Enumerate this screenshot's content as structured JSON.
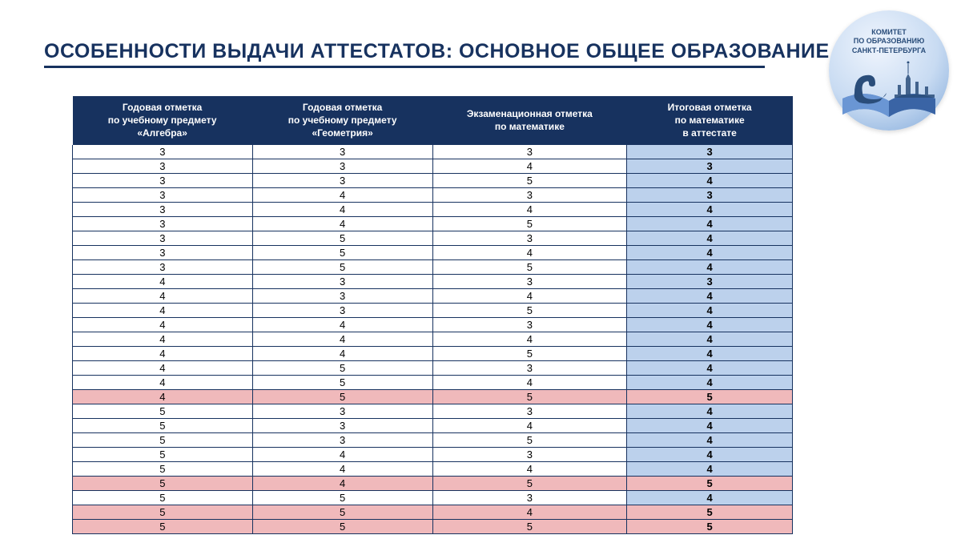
{
  "title": "ОСОБЕННОСТИ ВЫДАЧИ АТТЕСТАТОВ: ОСНОВНОЕ ОБЩЕЕ ОБРАЗОВАНИЕ",
  "logo": {
    "line1": "КОМИТЕТ",
    "line2": "ПО ОБРАЗОВАНИЮ",
    "line3": "САНКТ-ПЕТЕРБУРГА"
  },
  "table": {
    "columns": [
      "Годовая отметка\nпо учебному предмету\n«Алгебра»",
      "Годовая отметка\nпо учебному предмету\n«Геометрия»",
      "Экзаменационная отметка\nпо математике",
      "Итоговая отметка\nпо математике\nв аттестате"
    ],
    "rows": [
      {
        "c": [
          3,
          3,
          3,
          3
        ],
        "pink": false
      },
      {
        "c": [
          3,
          3,
          4,
          3
        ],
        "pink": false
      },
      {
        "c": [
          3,
          3,
          5,
          4
        ],
        "pink": false
      },
      {
        "c": [
          3,
          4,
          3,
          3
        ],
        "pink": false
      },
      {
        "c": [
          3,
          4,
          4,
          4
        ],
        "pink": false
      },
      {
        "c": [
          3,
          4,
          5,
          4
        ],
        "pink": false
      },
      {
        "c": [
          3,
          5,
          3,
          4
        ],
        "pink": false
      },
      {
        "c": [
          3,
          5,
          4,
          4
        ],
        "pink": false
      },
      {
        "c": [
          3,
          5,
          5,
          4
        ],
        "pink": false
      },
      {
        "c": [
          4,
          3,
          3,
          3
        ],
        "pink": false
      },
      {
        "c": [
          4,
          3,
          4,
          4
        ],
        "pink": false
      },
      {
        "c": [
          4,
          3,
          5,
          4
        ],
        "pink": false
      },
      {
        "c": [
          4,
          4,
          3,
          4
        ],
        "pink": false
      },
      {
        "c": [
          4,
          4,
          4,
          4
        ],
        "pink": false
      },
      {
        "c": [
          4,
          4,
          5,
          4
        ],
        "pink": false
      },
      {
        "c": [
          4,
          5,
          3,
          4
        ],
        "pink": false
      },
      {
        "c": [
          4,
          5,
          4,
          4
        ],
        "pink": false
      },
      {
        "c": [
          4,
          5,
          5,
          5
        ],
        "pink": true
      },
      {
        "c": [
          5,
          3,
          3,
          4
        ],
        "pink": false
      },
      {
        "c": [
          5,
          3,
          4,
          4
        ],
        "pink": false
      },
      {
        "c": [
          5,
          3,
          5,
          4
        ],
        "pink": false
      },
      {
        "c": [
          5,
          4,
          3,
          4
        ],
        "pink": false
      },
      {
        "c": [
          5,
          4,
          4,
          4
        ],
        "pink": false
      },
      {
        "c": [
          5,
          4,
          5,
          5
        ],
        "pink": true
      },
      {
        "c": [
          5,
          5,
          3,
          4
        ],
        "pink": false
      },
      {
        "c": [
          5,
          5,
          4,
          5
        ],
        "pink": true
      },
      {
        "c": [
          5,
          5,
          5,
          5
        ],
        "pink": true
      }
    ],
    "header_bg": "#17325f",
    "header_color": "#ffffff",
    "border_color": "#17325f",
    "last_col_bg": "#bcd1ec",
    "pink_bg": "#f0b9bb"
  }
}
